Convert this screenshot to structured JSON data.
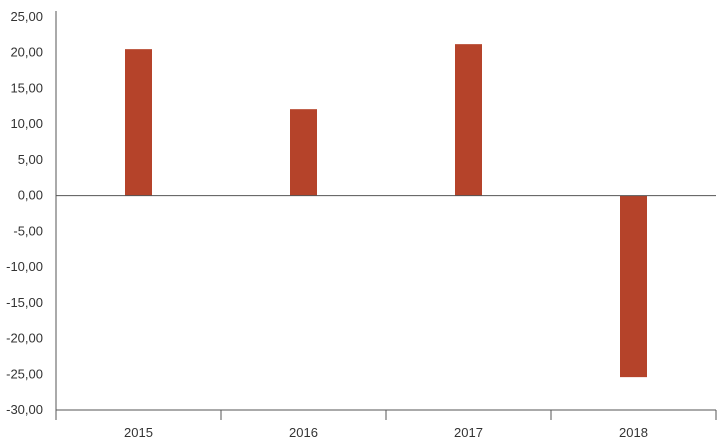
{
  "chart_data": {
    "type": "bar",
    "categories": [
      "2015",
      "2016",
      "2017",
      "2018"
    ],
    "values": [
      20.5,
      12.1,
      21.2,
      -25.4
    ],
    "ylim": [
      -30,
      25
    ],
    "yticks": [
      "25,00",
      "20,00",
      "15,00",
      "10,00",
      "5,00",
      "0,00",
      "-5,00",
      "-10,00",
      "-15,00",
      "-20,00",
      "-25,00",
      "-30,00"
    ],
    "ytick_values": [
      25,
      20,
      15,
      10,
      5,
      0,
      -5,
      -10,
      -15,
      -20,
      -25,
      -30
    ],
    "bar_color": "#b5432a",
    "grid": false,
    "legend": "none"
  }
}
